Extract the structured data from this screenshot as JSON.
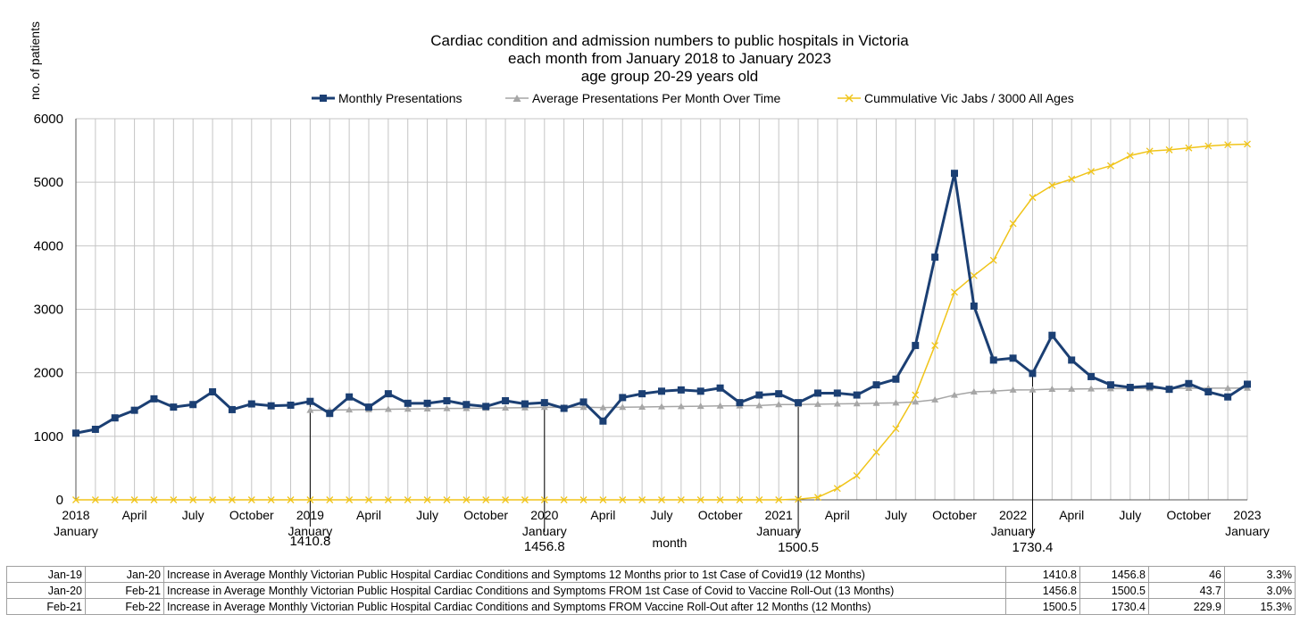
{
  "chart_data": {
    "type": "line",
    "title": [
      "Cardiac condition and admission numbers to public hospitals in Victoria",
      "each month from January 2018 to January 2023",
      "age group 20-29 years old"
    ],
    "ylabel": "no. of patients",
    "xlabel": "month",
    "ylim": [
      0,
      6000
    ],
    "yticks": [
      0,
      1000,
      2000,
      3000,
      4000,
      5000,
      6000
    ],
    "grid": true,
    "legend_position": "top",
    "x_tick_labels": [
      {
        "i": 0,
        "lines": [
          "2018",
          "January"
        ]
      },
      {
        "i": 3,
        "lines": [
          "April"
        ]
      },
      {
        "i": 6,
        "lines": [
          "July"
        ]
      },
      {
        "i": 9,
        "lines": [
          "October"
        ]
      },
      {
        "i": 12,
        "lines": [
          "2019",
          "January"
        ]
      },
      {
        "i": 15,
        "lines": [
          "April"
        ]
      },
      {
        "i": 18,
        "lines": [
          "July"
        ]
      },
      {
        "i": 21,
        "lines": [
          "October"
        ]
      },
      {
        "i": 24,
        "lines": [
          "2020",
          "January"
        ]
      },
      {
        "i": 27,
        "lines": [
          "April"
        ]
      },
      {
        "i": 30,
        "lines": [
          "July"
        ]
      },
      {
        "i": 33,
        "lines": [
          "October"
        ]
      },
      {
        "i": 36,
        "lines": [
          "2021",
          "January"
        ]
      },
      {
        "i": 39,
        "lines": [
          "April"
        ]
      },
      {
        "i": 42,
        "lines": [
          "July"
        ]
      },
      {
        "i": 45,
        "lines": [
          "October"
        ]
      },
      {
        "i": 48,
        "lines": [
          "2022",
          "January"
        ]
      },
      {
        "i": 51,
        "lines": [
          "April"
        ]
      },
      {
        "i": 54,
        "lines": [
          "July"
        ]
      },
      {
        "i": 57,
        "lines": [
          "October"
        ]
      },
      {
        "i": 60,
        "lines": [
          "2023",
          "January"
        ]
      }
    ],
    "series": [
      {
        "name": "Monthly Presentations",
        "color": "#1b3f73",
        "marker": "square",
        "values": [
          1050,
          1110,
          1290,
          1410,
          1590,
          1460,
          1500,
          1700,
          1420,
          1510,
          1480,
          1490,
          1550,
          1360,
          1620,
          1460,
          1670,
          1520,
          1520,
          1560,
          1500,
          1470,
          1560,
          1510,
          1530,
          1440,
          1540,
          1240,
          1610,
          1670,
          1710,
          1730,
          1710,
          1760,
          1530,
          1650,
          1670,
          1530,
          1680,
          1680,
          1650,
          1810,
          1900,
          2430,
          3820,
          5140,
          3050,
          2200,
          2230,
          1990,
          2590,
          2200,
          1940,
          1810,
          1770,
          1790,
          1740,
          1830,
          1700,
          1620,
          1820
        ]
      },
      {
        "name": "Average Presentations Per Month Over Time",
        "color": "#a6a6a6",
        "marker": "triangle",
        "values": [
          null,
          null,
          null,
          null,
          null,
          null,
          null,
          null,
          null,
          null,
          null,
          null,
          1411,
          1413,
          1418,
          1421,
          1426,
          1430,
          1434,
          1438,
          1441,
          1444,
          1448,
          1451,
          1457,
          1456,
          1457,
          1452,
          1457,
          1462,
          1466,
          1471,
          1474,
          1479,
          1481,
          1484,
          1500,
          1501,
          1506,
          1510,
          1514,
          1521,
          1527,
          1542,
          1576,
          1650,
          1700,
          1710,
          1730,
          1731,
          1742,
          1745,
          1748,
          1751,
          1752,
          1753,
          1754,
          1756,
          1758,
          1759,
          1760
        ]
      },
      {
        "name": "Cummulative Vic Jabs / 3000 All Ages",
        "color": "#f0c419",
        "marker": "x",
        "values": [
          0,
          0,
          0,
          0,
          0,
          0,
          0,
          0,
          0,
          0,
          0,
          0,
          0,
          0,
          0,
          0,
          0,
          0,
          0,
          0,
          0,
          0,
          0,
          0,
          0,
          0,
          0,
          0,
          0,
          0,
          0,
          0,
          0,
          0,
          0,
          0,
          0,
          10,
          40,
          180,
          380,
          750,
          1120,
          1650,
          2430,
          3270,
          3530,
          3770,
          4350,
          4760,
          4950,
          5050,
          5170,
          5260,
          5420,
          5490,
          5510,
          5540,
          5570,
          5590,
          5600
        ]
      }
    ],
    "annotations": [
      {
        "i": 12,
        "text": "1410.8"
      },
      {
        "i": 24,
        "text": "1456.8"
      },
      {
        "i": 37,
        "text": "1500.5"
      },
      {
        "i": 49,
        "text": "1730.4"
      }
    ]
  },
  "legend": [
    {
      "label": "Monthly Presentations",
      "color": "#1b3f73",
      "marker": "square"
    },
    {
      "label": "Average Presentations Per Month Over Time",
      "color": "#a6a6a6",
      "marker": "triangle"
    },
    {
      "label": "Cummulative Vic Jabs / 3000 All Ages",
      "color": "#f0c419",
      "marker": "x"
    }
  ],
  "table": {
    "rows": [
      [
        "Jan-19",
        "Jan-20",
        "Increase in Average Monthly Victorian Public Hospital Cardiac Conditions and Symptoms  12 Months prior to 1st Case of Covid19  (12 Months)",
        "1410.8",
        "1456.8",
        "46",
        "3.3%"
      ],
      [
        "Jan-20",
        "Feb-21",
        "Increase in Average Monthly Victorian Public Hospital Cardiac Conditions and Symptoms  FROM 1st Case of Covid to Vaccine Roll-Out (13 Months)",
        "1456.8",
        "1500.5",
        "43.7",
        "3.0%"
      ],
      [
        "Feb-21",
        "Feb-22",
        "Increase in Average Monthly Victorian Public Hospital Cardiac Conditions and Symptoms FROM Vaccine Roll-Out after 12 Months (12 Months)",
        "1500.5",
        "1730.4",
        "229.9",
        "15.3%"
      ]
    ]
  }
}
